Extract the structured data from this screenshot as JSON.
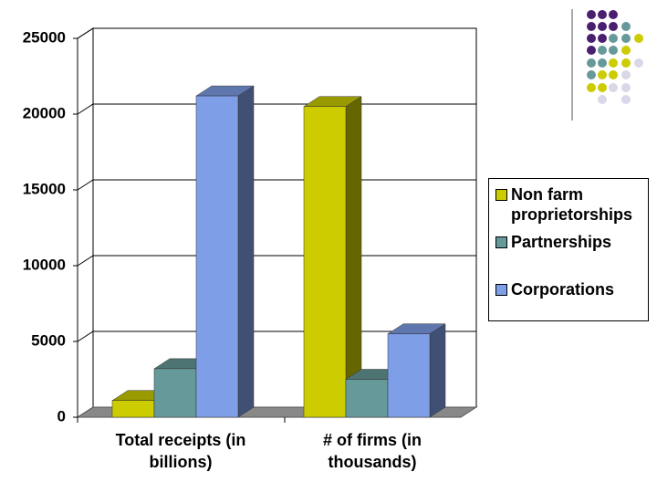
{
  "chart_data": {
    "type": "bar3d",
    "categories": [
      "Total receipts (in billions)",
      "# of firms (in thousands)"
    ],
    "series": [
      {
        "name": "Non farm proprietorships",
        "color": "#cccc00",
        "values": [
          1100,
          20500
        ]
      },
      {
        "name": "Partnerships",
        "color": "#669999",
        "values": [
          3200,
          2500
        ]
      },
      {
        "name": "Corporations",
        "color": "#7f9ee8",
        "values": [
          21200,
          5500
        ]
      }
    ],
    "ylim": [
      0,
      25000
    ],
    "yticks": [
      0,
      5000,
      10000,
      15000,
      20000,
      25000
    ],
    "grid": true,
    "legend": "right"
  }
}
